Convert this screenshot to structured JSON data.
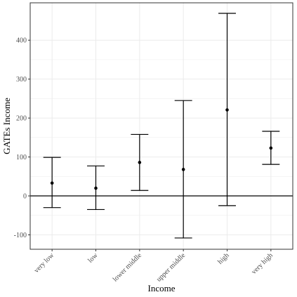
{
  "chart_data": {
    "type": "errorbar",
    "xlabel": "Income",
    "ylabel": "GATEs Income",
    "categories": [
      "very low",
      "low",
      "lower middle",
      "upper middle",
      "high",
      "very high"
    ],
    "estimate": [
      33,
      20,
      86,
      68,
      221,
      123
    ],
    "lower": [
      -30,
      -35,
      14,
      -108,
      -25,
      81
    ],
    "upper": [
      99,
      77,
      158,
      245,
      469,
      166
    ],
    "ylim": [
      -137,
      496
    ],
    "yticks": [
      -100,
      0,
      100,
      200,
      300,
      400
    ],
    "reference_line": 0,
    "grid": true,
    "legend": "none",
    "colors": {
      "point": "#000000",
      "errorbar": "#000000",
      "grid": "#ebebeb",
      "panel_border": "#333333",
      "tick_text": "#4d4d4d"
    }
  }
}
